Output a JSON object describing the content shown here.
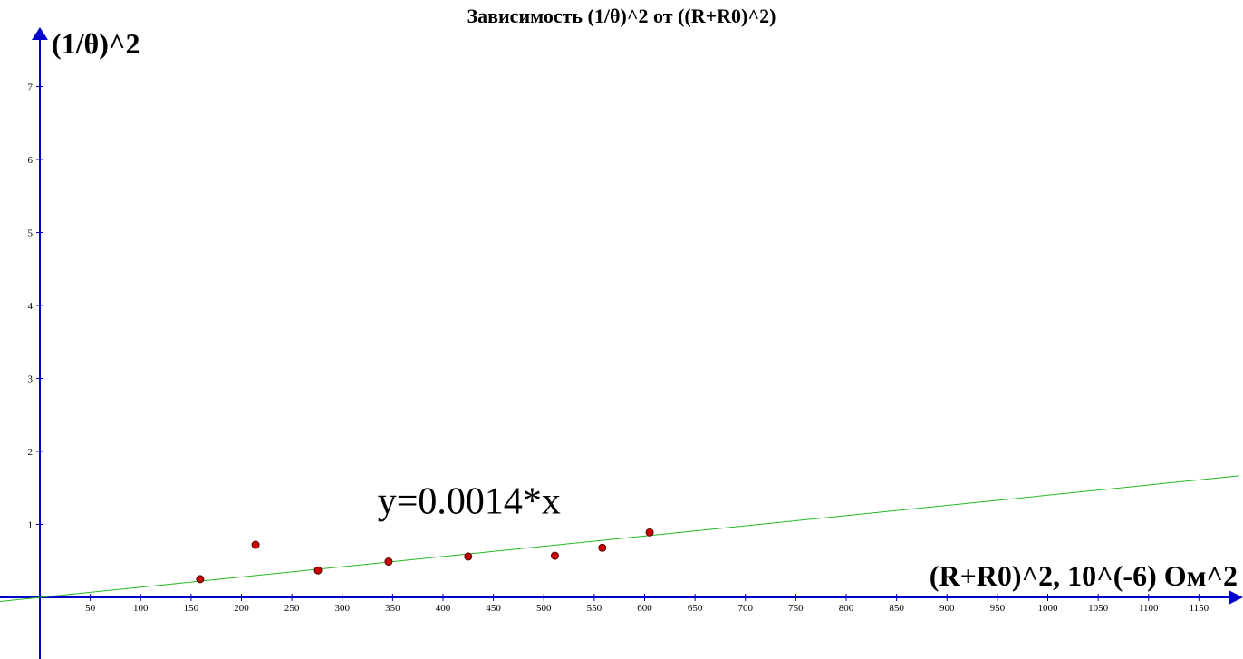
{
  "chart_data": {
    "type": "scatter",
    "title": "Зависимость (1/θ)^2 от ((R+R0)^2)",
    "xlabel": "(R+R0)^2, 10^(-6) Ом^2",
    "ylabel": "(1/θ)^2",
    "xlim": [
      0,
      1190
    ],
    "ylim": [
      0,
      7
    ],
    "x_ticks": [
      50,
      100,
      150,
      200,
      250,
      300,
      350,
      400,
      450,
      500,
      550,
      600,
      650,
      700,
      750,
      800,
      850,
      900,
      950,
      1000,
      1050,
      1100,
      1150
    ],
    "y_ticks": [
      1,
      2,
      3,
      4,
      5,
      6,
      7
    ],
    "grid": false,
    "series": [
      {
        "type": "scatter",
        "color": "#cc0000",
        "points": [
          {
            "x": 159,
            "y": 0.25
          },
          {
            "x": 214,
            "y": 0.72
          },
          {
            "x": 276,
            "y": 0.37
          },
          {
            "x": 346,
            "y": 0.49
          },
          {
            "x": 425,
            "y": 0.56
          },
          {
            "x": 511,
            "y": 0.57
          },
          {
            "x": 558,
            "y": 0.68
          },
          {
            "x": 605,
            "y": 0.89
          }
        ]
      },
      {
        "type": "line",
        "color": "#22bb22",
        "slope": 0.0014,
        "x_range": [
          -40,
          1190
        ]
      }
    ],
    "annotations": [
      {
        "text": "y=0.0014*x",
        "x": 335,
        "y": 1.15
      }
    ],
    "axis_color": "#0000cc"
  }
}
